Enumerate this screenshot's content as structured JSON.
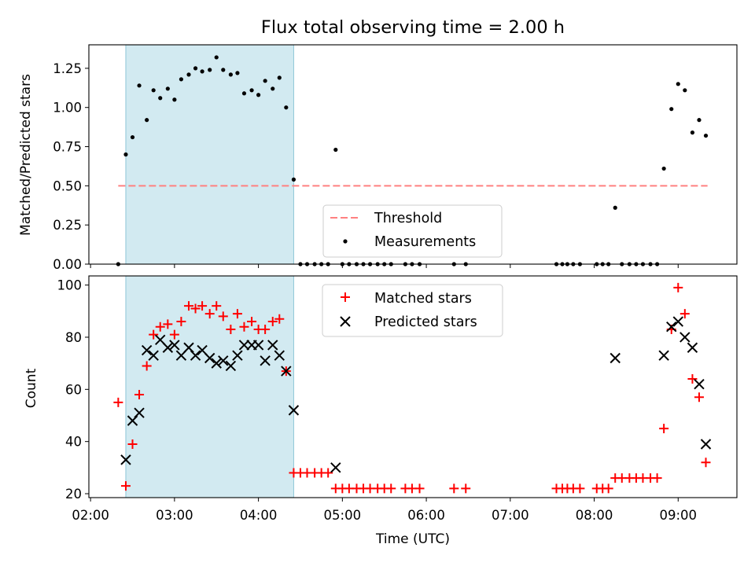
{
  "title": "Flux total observing time = 2.00 h",
  "colors": {
    "shade": "#add8e6",
    "threshold": "#ff8080",
    "measurements": "#000000",
    "matched": "#ff0000",
    "predicted": "#000000"
  },
  "chart_data": [
    {
      "type": "scatter",
      "title": "Flux total observing time = 2.00 h",
      "xlabel": "",
      "ylabel": "Matched/Predicted stars",
      "x_unit": "hours UTC",
      "xlim": [
        1.98,
        9.7
      ],
      "ylim": [
        0,
        1.4
      ],
      "yticks": [
        0.0,
        0.25,
        0.5,
        0.75,
        1.0,
        1.25
      ],
      "ytick_labels": [
        "0.00",
        "0.25",
        "0.50",
        "0.75",
        "1.00",
        "1.25"
      ],
      "xticks": [
        2,
        3,
        4,
        5,
        6,
        7,
        8,
        9
      ],
      "shaded_span": [
        2.42,
        4.42
      ],
      "legend_position": "lower center",
      "series": [
        {
          "name": "Threshold",
          "style": "dashed-line",
          "x": [
            2.33,
            9.35
          ],
          "y": [
            0.5,
            0.5
          ]
        },
        {
          "name": "Measurements",
          "style": "dot",
          "x": [
            2.33,
            2.42,
            2.5,
            2.58,
            2.67,
            2.75,
            2.83,
            2.92,
            3.0,
            3.08,
            3.17,
            3.25,
            3.33,
            3.42,
            3.5,
            3.58,
            3.67,
            3.75,
            3.83,
            3.92,
            4.0,
            4.08,
            4.17,
            4.25,
            4.33,
            4.42,
            4.5,
            4.58,
            4.67,
            4.75,
            4.83,
            4.92,
            5.0,
            5.08,
            5.17,
            5.25,
            5.33,
            5.42,
            5.5,
            5.58,
            5.75,
            5.83,
            5.92,
            6.33,
            6.47,
            7.55,
            7.62,
            7.68,
            7.75,
            7.83,
            8.03,
            8.1,
            8.17,
            8.25,
            8.33,
            8.42,
            8.5,
            8.58,
            8.67,
            8.75,
            8.83,
            8.92,
            9.0,
            9.08,
            9.17,
            9.25,
            9.33
          ],
          "y": [
            0.0,
            0.7,
            0.81,
            1.14,
            0.92,
            1.11,
            1.06,
            1.12,
            1.05,
            1.18,
            1.21,
            1.25,
            1.23,
            1.24,
            1.32,
            1.24,
            1.21,
            1.22,
            1.09,
            1.11,
            1.08,
            1.17,
            1.12,
            1.19,
            1.0,
            0.54,
            0.0,
            0.0,
            0.0,
            0.0,
            0.0,
            0.73,
            0.0,
            0.0,
            0.0,
            0.0,
            0.0,
            0.0,
            0.0,
            0.0,
            0.0,
            0.0,
            0.0,
            0.0,
            0.0,
            0.0,
            0.0,
            0.0,
            0.0,
            0.0,
            0.0,
            0.0,
            0.0,
            0.36,
            0.0,
            0.0,
            0.0,
            0.0,
            0.0,
            0.0,
            0.61,
            0.99,
            1.15,
            1.11,
            0.84,
            0.92,
            0.82
          ]
        }
      ]
    },
    {
      "type": "scatter",
      "title": "",
      "xlabel": "Time (UTC)",
      "ylabel": "Count",
      "x_unit": "hours UTC",
      "xlim": [
        1.98,
        9.7
      ],
      "ylim": [
        18.5,
        103.5
      ],
      "yticks": [
        20,
        40,
        60,
        80,
        100
      ],
      "ytick_labels": [
        "20",
        "40",
        "60",
        "80",
        "100"
      ],
      "xticks": [
        2,
        3,
        4,
        5,
        6,
        7,
        8,
        9
      ],
      "xtick_labels": [
        "02:00",
        "03:00",
        "04:00",
        "05:00",
        "06:00",
        "07:00",
        "08:00",
        "09:00"
      ],
      "shaded_span": [
        2.42,
        4.42
      ],
      "legend_position": "upper center",
      "series": [
        {
          "name": "Matched stars",
          "marker": "plus",
          "x": [
            2.33,
            2.42,
            2.5,
            2.58,
            2.67,
            2.75,
            2.83,
            2.92,
            3.0,
            3.08,
            3.17,
            3.25,
            3.33,
            3.42,
            3.5,
            3.58,
            3.67,
            3.75,
            3.83,
            3.92,
            4.0,
            4.08,
            4.17,
            4.25,
            4.33,
            4.42,
            4.5,
            4.58,
            4.67,
            4.75,
            4.83,
            4.92,
            5.0,
            5.08,
            5.17,
            5.25,
            5.33,
            5.42,
            5.5,
            5.58,
            5.75,
            5.83,
            5.92,
            6.33,
            6.47,
            7.55,
            7.62,
            7.68,
            7.75,
            7.83,
            8.03,
            8.1,
            8.17,
            8.25,
            8.33,
            8.42,
            8.5,
            8.58,
            8.67,
            8.75,
            8.83,
            8.92,
            9.0,
            9.08,
            9.17,
            9.25,
            9.33
          ],
          "y": [
            55,
            23,
            39,
            58,
            69,
            81,
            84,
            85,
            81,
            86,
            92,
            91,
            92,
            89,
            92,
            88,
            83,
            89,
            84,
            86,
            83,
            83,
            86,
            87,
            67,
            28,
            28,
            28,
            28,
            28,
            28,
            22,
            22,
            22,
            22,
            22,
            22,
            22,
            22,
            22,
            22,
            22,
            22,
            22,
            22,
            22,
            22,
            22,
            22,
            22,
            22,
            22,
            22,
            26,
            26,
            26,
            26,
            26,
            26,
            26,
            45,
            83,
            99,
            89,
            64,
            57,
            32
          ]
        },
        {
          "name": "Predicted stars",
          "marker": "x",
          "x": [
            2.42,
            2.5,
            2.58,
            2.67,
            2.75,
            2.83,
            2.92,
            3.0,
            3.08,
            3.17,
            3.25,
            3.33,
            3.42,
            3.5,
            3.58,
            3.67,
            3.75,
            3.83,
            3.92,
            4.0,
            4.08,
            4.17,
            4.25,
            4.33,
            4.42,
            4.92,
            8.25,
            8.83,
            8.92,
            9.0,
            9.08,
            9.17,
            9.25,
            9.33
          ],
          "y": [
            33,
            48,
            51,
            75,
            73,
            79,
            76,
            77,
            73,
            76,
            73,
            75,
            72,
            70,
            71,
            69,
            73,
            77,
            77,
            77,
            71,
            77,
            73,
            67,
            52,
            30,
            72,
            73,
            84,
            86,
            80,
            76,
            62,
            39
          ]
        }
      ]
    }
  ]
}
